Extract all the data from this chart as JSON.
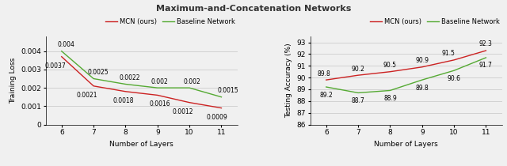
{
  "title": "Maximum-and-Concatenation Networks",
  "layers": [
    6,
    7,
    8,
    9,
    10,
    11
  ],
  "loss_mcn": [
    0.0037,
    0.0021,
    0.0018,
    0.0016,
    0.0012,
    0.0009
  ],
  "loss_baseline": [
    0.004,
    0.0025,
    0.0022,
    0.002,
    0.002,
    0.0015
  ],
  "acc_mcn": [
    89.8,
    90.2,
    90.5,
    90.9,
    91.5,
    92.3
  ],
  "acc_baseline": [
    89.2,
    88.7,
    88.9,
    89.8,
    90.6,
    91.7
  ],
  "loss_mcn_labels": [
    "0.0037",
    "0.0021",
    "0.0018",
    "0.0016",
    "0.0012",
    "0.0009"
  ],
  "loss_baseline_labels": [
    "0.004",
    "0.0025",
    "0.0022",
    "0.002",
    "0.002",
    "0.0015"
  ],
  "acc_mcn_labels": [
    "89.8",
    "90.2",
    "90.5",
    "90.9",
    "91.5",
    "92.3"
  ],
  "acc_baseline_labels": [
    "89.2",
    "88.7",
    "88.9",
    "89.8",
    "90.6",
    "91.7"
  ],
  "mcn_color": "#cc2222",
  "baseline_color": "#55aa33",
  "xlabel": "Number of Layers",
  "ylabel_loss": "Training Loss",
  "ylabel_acc": "Testing Accuracy (%)",
  "loss_ylim": [
    0,
    0.0048
  ],
  "loss_yticks": [
    0,
    0.001,
    0.002,
    0.003,
    0.004
  ],
  "loss_yticklabels": [
    "0",
    "0.001",
    "0.002",
    "0.003",
    "0.004"
  ],
  "acc_ylim": [
    86,
    93.5
  ],
  "acc_yticks": [
    86,
    87,
    88,
    89,
    90,
    91,
    92,
    93
  ],
  "legend_mcn": "MCN (ours)",
  "legend_baseline": "Baseline Network",
  "annotation_fontsize": 5.5,
  "title_fontsize": 8,
  "axis_fontsize": 6.5,
  "tick_fontsize": 6.5,
  "legend_fontsize": 6,
  "bg_color": "#f0f0f0"
}
